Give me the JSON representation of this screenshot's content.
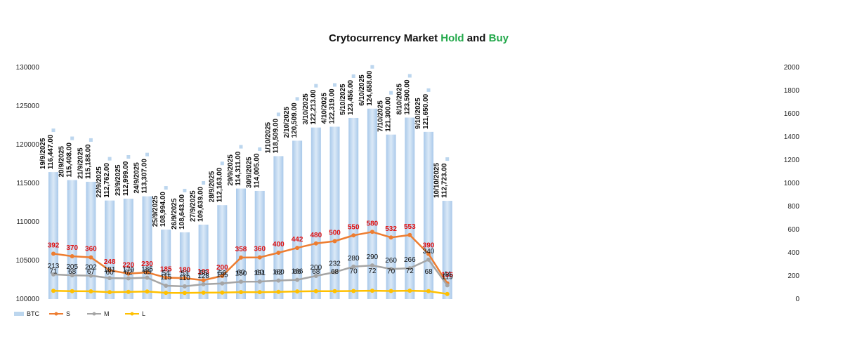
{
  "title": {
    "part1": "Crytocurrency Market ",
    "hold": "Hold",
    "part2": " and ",
    "buy": "Buy",
    "highlight_color": "#22a84a"
  },
  "chart_data": {
    "type": "bar+line",
    "categories": [
      "19/9/2025",
      "20/9/2025",
      "21/9/2025",
      "22/9/2025",
      "23/9/2025",
      "24/9/2025",
      "25/9/2025",
      "26/9/2025",
      "27/9/2025",
      "28/9/2025",
      "29/9/2025",
      "30/9/2025",
      "1/10/2025",
      "2/10/2025",
      "3/10/2025",
      "4/10/2025",
      "5/10/2025",
      "6/10/2025",
      "7/10/2025",
      "8/10/2025",
      "9/10/2025",
      "10/10/2025"
    ],
    "category_labels": [
      "19/9/2025",
      "20/9/2025",
      "21/9/2025",
      "22/9/2025",
      "23/9/2025",
      "24/9/2025",
      "25/9/2025",
      "26/9/2025",
      "27/9/2025",
      "28/9/2025",
      "29/9/2025",
      "30/9/2025",
      "1/10/2025",
      "2/10/2025",
      "3/10/2025",
      "4/10/2025",
      "5/10/2025",
      "6/10/2025",
      "7/10/2025",
      "8/10/2025",
      "9/10/2025",
      "10/10/2025"
    ],
    "btc": {
      "name": "BTC",
      "axis": "left",
      "color": "#bcd6ee",
      "values": [
        116447,
        115408,
        115188,
        112762,
        112999,
        113307,
        108994,
        108643,
        109639,
        112163,
        114311,
        114005,
        118509,
        120509,
        122213,
        122319,
        123456,
        124658,
        121300,
        123500,
        121650,
        112723
      ],
      "labels": [
        "116,447.00",
        "115,408.00",
        "115,188.00",
        "112,762.00",
        "112,999.00",
        "113,307.00",
        "108,994.00",
        "108,643.00",
        "109,639.00",
        "112,163.00",
        "114,311.00",
        "114,005.00",
        "118,509.00",
        "120,509.00",
        "122,213.00",
        "122,319.00",
        "123,456.00",
        "124,658.00",
        "121,300.00",
        "123,500.00",
        "121,650.00",
        "112,723.00"
      ]
    },
    "series": [
      {
        "name": "S",
        "axis": "right",
        "color": "#ed7d31",
        "label_color": "#e01010",
        "values": [
          392,
          370,
          360,
          248,
          220,
          230,
          185,
          180,
          163,
          200,
          358,
          360,
          400,
          442,
          480,
          500,
          550,
          580,
          532,
          553,
          390,
          136
        ]
      },
      {
        "name": "M",
        "axis": "right",
        "color": "#a5a5a5",
        "values": [
          213,
          205,
          202,
          181,
          179,
          185,
          115,
          110,
          128,
          135,
          150,
          151,
          160,
          166,
          200,
          232,
          280,
          290,
          260,
          266,
          340,
          119
        ]
      },
      {
        "name": "L",
        "axis": "right",
        "color": "#ffc000",
        "values": [
          71,
          68,
          67,
          60,
          62,
          65,
          54,
          53,
          55,
          56,
          60,
          60,
          62,
          66,
          68,
          68,
          70,
          72,
          70,
          72,
          68,
          44
        ]
      }
    ],
    "left_axis": {
      "min": 100000,
      "max": 130000,
      "step": 5000,
      "ticks": [
        "100000",
        "105000",
        "110000",
        "115000",
        "120000",
        "125000",
        "130000"
      ]
    },
    "right_axis": {
      "min": 0,
      "max": 2000,
      "step": 200,
      "ticks": [
        "0",
        "200",
        "400",
        "600",
        "800",
        "1000",
        "1200",
        "1400",
        "1600",
        "1800",
        "2000"
      ]
    },
    "legend": [
      "BTC",
      "S",
      "M",
      "L"
    ],
    "legend_position": "bottom-left",
    "grid": false
  }
}
